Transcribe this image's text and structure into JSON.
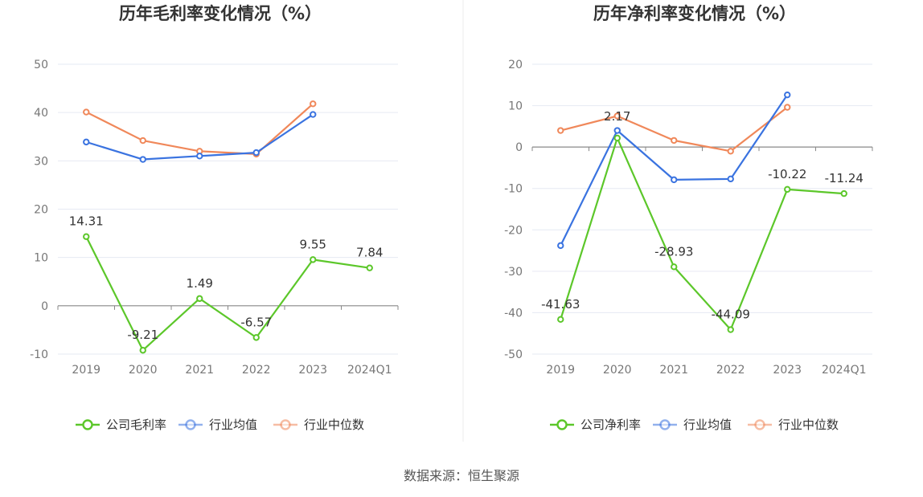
{
  "source": "数据来源：恒生聚源",
  "colors": {
    "company": "#5cc72a",
    "avg": "#3a73e0",
    "median": "#f0885a",
    "grid": "#e6e9f3",
    "axis": "#888888"
  },
  "chart_data": [
    {
      "type": "line",
      "title": "历年毛利率变化情况（%）",
      "categories": [
        "2019",
        "2020",
        "2021",
        "2022",
        "2023",
        "2024Q1"
      ],
      "ylim": [
        -10,
        50
      ],
      "yticks": [
        -10,
        0,
        10,
        20,
        30,
        40,
        50
      ],
      "grid": true,
      "legend_position": "bottom",
      "series": [
        {
          "name": "公司毛利率",
          "key": "company",
          "values": [
            14.31,
            -9.21,
            1.49,
            -6.57,
            9.55,
            7.84
          ],
          "labels": [
            "14.31",
            "-9.21",
            "1.49",
            "-6.57",
            "9.55",
            "7.84"
          ]
        },
        {
          "name": "行业均值",
          "key": "avg",
          "values": [
            33.9,
            30.3,
            31.0,
            31.7,
            39.6,
            null
          ]
        },
        {
          "name": "行业中位数",
          "key": "median",
          "values": [
            40.1,
            34.2,
            32.0,
            31.4,
            41.8,
            null
          ]
        }
      ]
    },
    {
      "type": "line",
      "title": "历年净利率变化情况（%）",
      "categories": [
        "2019",
        "2020",
        "2021",
        "2022",
        "2023",
        "2024Q1"
      ],
      "ylim": [
        -50,
        20
      ],
      "yticks": [
        -50,
        -40,
        -30,
        -20,
        -10,
        0,
        10,
        20
      ],
      "grid": true,
      "legend_position": "bottom",
      "series": [
        {
          "name": "公司净利率",
          "key": "company",
          "values": [
            -41.63,
            2.17,
            -28.93,
            -44.09,
            -10.22,
            -11.24
          ],
          "labels": [
            "-41.63",
            "2.17",
            "-28.93",
            "-44.09",
            "-10.22",
            "-11.24"
          ]
        },
        {
          "name": "行业均值",
          "key": "avg",
          "values": [
            -23.8,
            4.0,
            -7.9,
            -7.7,
            12.6,
            null
          ]
        },
        {
          "name": "行业中位数",
          "key": "median",
          "values": [
            4.0,
            7.5,
            1.6,
            -1.0,
            9.6,
            null
          ]
        }
      ]
    }
  ]
}
